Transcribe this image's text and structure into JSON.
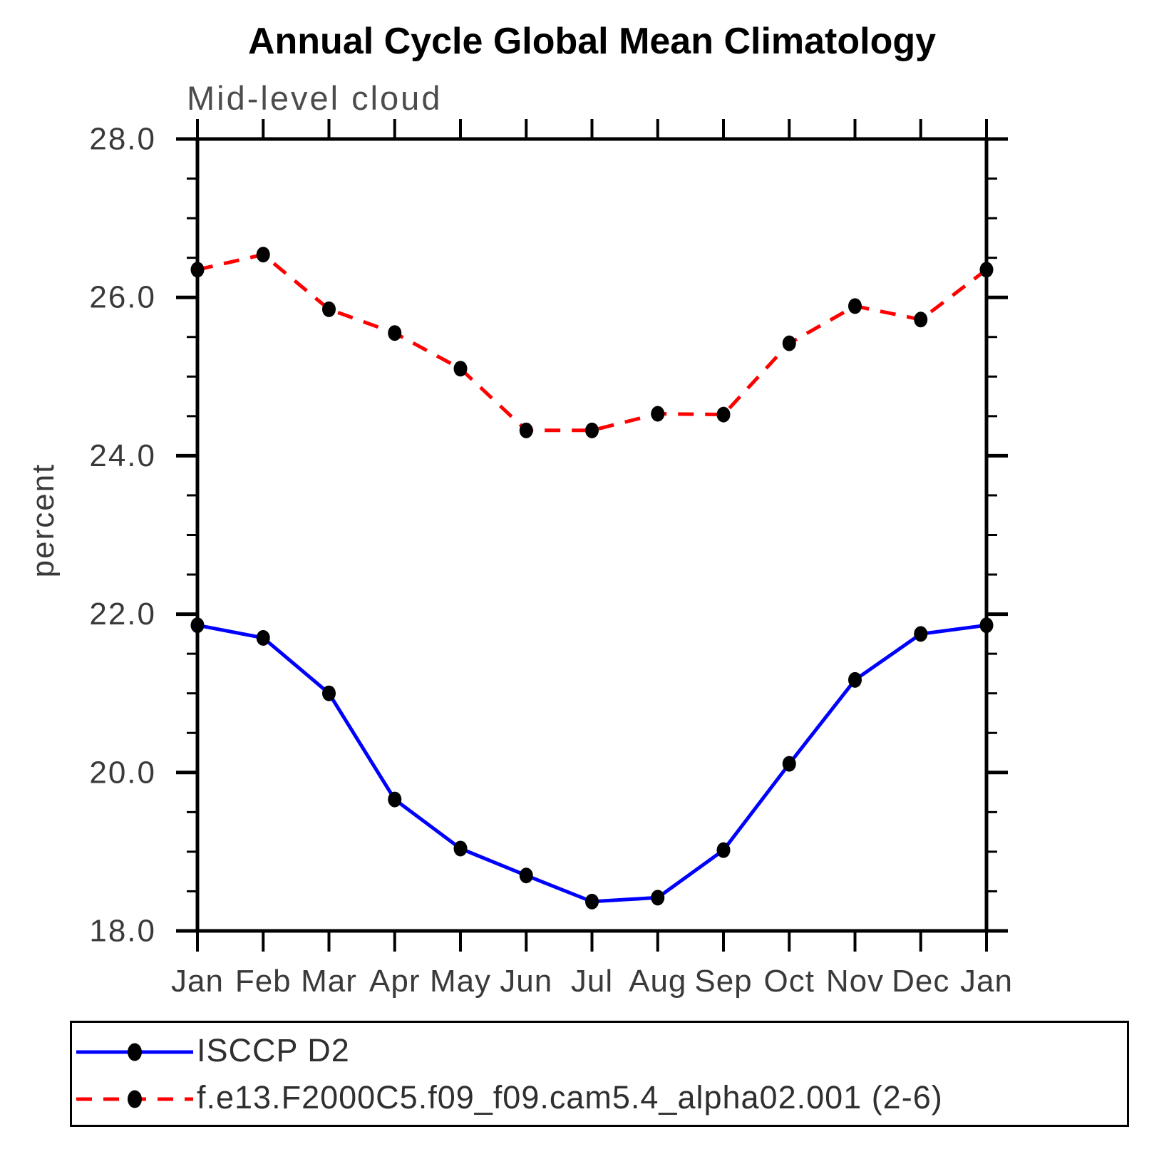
{
  "title": "Annual Cycle Global Mean Climatology",
  "subtitle": "Mid-level cloud",
  "ylabel": "percent",
  "legend": {
    "entries": [
      {
        "label": "ISCCP D2",
        "color": "#0000ff",
        "style": "solid"
      },
      {
        "label": "f.e13.F2000C5.f09_f09.cam5.4_alpha02.001 (2-6)",
        "color": "#ff0000",
        "style": "dashed"
      }
    ]
  },
  "chart_data": {
    "type": "line",
    "title": "Annual Cycle Global Mean Climatology",
    "subtitle": "Mid-level cloud",
    "xlabel": "",
    "ylabel": "percent",
    "categories": [
      "Jan",
      "Feb",
      "Mar",
      "Apr",
      "May",
      "Jun",
      "Jul",
      "Aug",
      "Sep",
      "Oct",
      "Nov",
      "Dec",
      "Jan"
    ],
    "series": [
      {
        "name": "ISCCP D2",
        "color": "#0000ff",
        "style": "solid",
        "marker": "circle",
        "marker_color": "#000000",
        "values": [
          21.86,
          21.7,
          21.0,
          19.66,
          19.04,
          18.7,
          18.37,
          18.42,
          19.02,
          20.11,
          21.17,
          21.75,
          21.86
        ]
      },
      {
        "name": "f.e13.F2000C5.f09_f09.cam5.4_alpha02.001 (2-6)",
        "color": "#ff0000",
        "style": "dashed",
        "marker": "circle",
        "marker_color": "#000000",
        "values": [
          26.35,
          26.54,
          25.85,
          25.55,
          25.1,
          24.32,
          24.32,
          24.53,
          24.52,
          25.42,
          25.89,
          25.72,
          26.35
        ]
      }
    ],
    "ylim": [
      18.0,
      28.0
    ],
    "ytick_major": [
      18.0,
      20.0,
      22.0,
      24.0,
      26.0,
      28.0
    ],
    "ytick_labels": [
      "18.0",
      "20.0",
      "22.0",
      "24.0",
      "26.0",
      "28.0"
    ],
    "ytick_minor_step": 0.5,
    "grid": false,
    "legend_position": "bottom"
  }
}
